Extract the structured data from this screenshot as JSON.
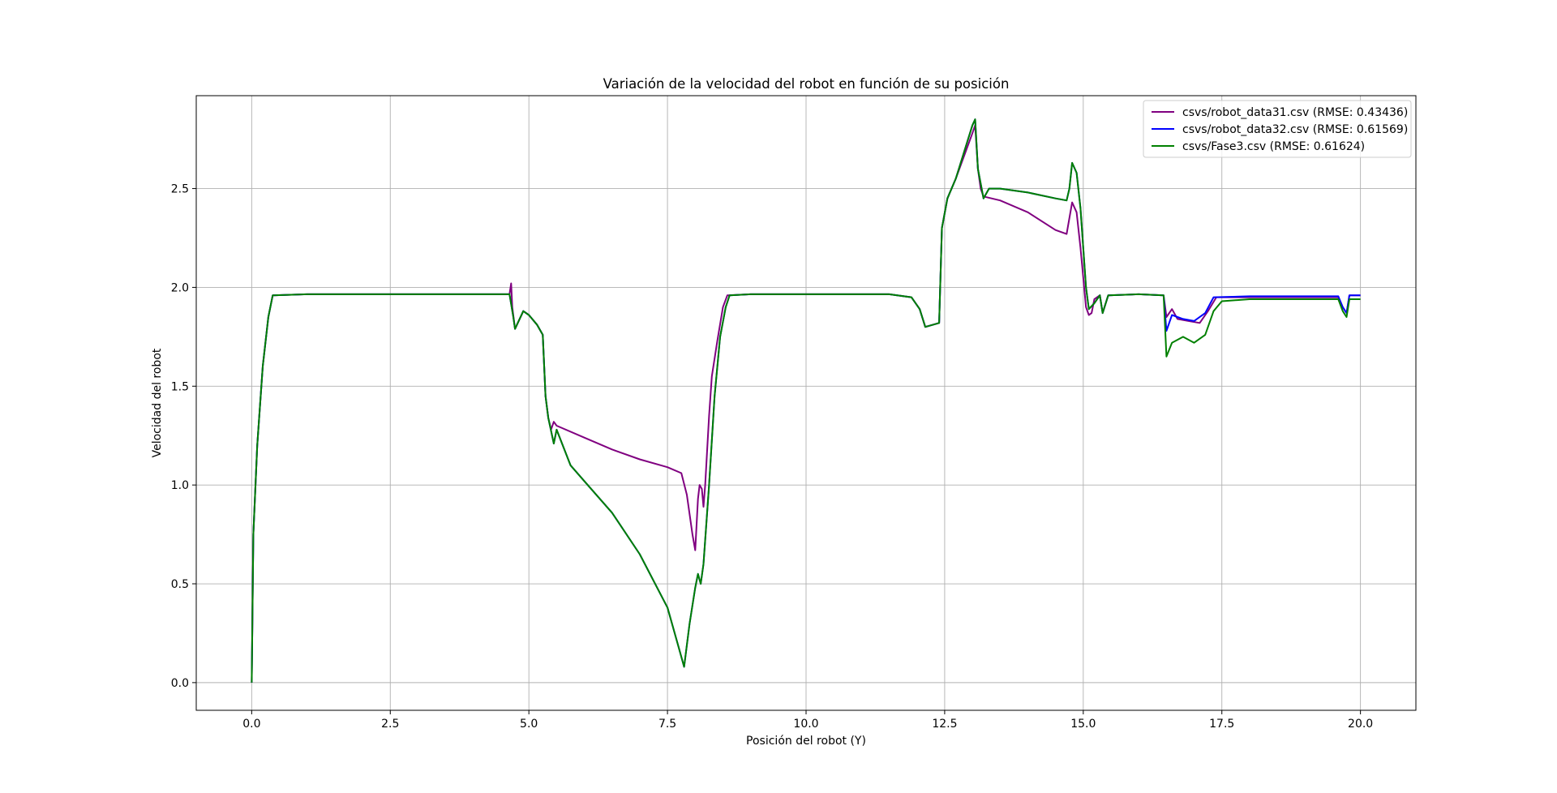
{
  "chart_data": {
    "type": "line",
    "title": "Variación de la velocidad del robot en función de su posición",
    "xlabel": "Posición del robot (Y)",
    "ylabel": "Velocidad del robot",
    "xlim": [
      -1.0,
      21.0
    ],
    "ylim": [
      -0.14,
      2.97
    ],
    "xticks": [
      0.0,
      2.5,
      5.0,
      7.5,
      10.0,
      12.5,
      15.0,
      17.5,
      20.0
    ],
    "xtick_labels": [
      "0.0",
      "2.5",
      "5.0",
      "7.5",
      "10.0",
      "12.5",
      "15.0",
      "17.5",
      "20.0"
    ],
    "yticks": [
      0.0,
      0.5,
      1.0,
      1.5,
      2.0,
      2.5
    ],
    "ytick_labels": [
      "0.0",
      "0.5",
      "1.0",
      "1.5",
      "2.0",
      "2.5"
    ],
    "grid": true,
    "legend_position": "upper-right",
    "series": [
      {
        "name": "csvs/robot_data31.csv (RMSE: 0.43436)",
        "color": "#800080",
        "points": [
          [
            0.0,
            0.0
          ],
          [
            0.03,
            0.75
          ],
          [
            0.1,
            1.2
          ],
          [
            0.2,
            1.6
          ],
          [
            0.3,
            1.85
          ],
          [
            0.38,
            1.96
          ],
          [
            1.0,
            1.965
          ],
          [
            2.5,
            1.965
          ],
          [
            4.0,
            1.965
          ],
          [
            4.65,
            1.965
          ],
          [
            4.68,
            2.02
          ],
          [
            4.7,
            1.9
          ],
          [
            4.75,
            1.79
          ],
          [
            4.8,
            1.82
          ],
          [
            4.9,
            1.88
          ],
          [
            5.0,
            1.86
          ],
          [
            5.15,
            1.81
          ],
          [
            5.25,
            1.76
          ],
          [
            5.3,
            1.45
          ],
          [
            5.35,
            1.34
          ],
          [
            5.4,
            1.28
          ],
          [
            5.45,
            1.32
          ],
          [
            5.5,
            1.3
          ],
          [
            6.0,
            1.24
          ],
          [
            6.5,
            1.18
          ],
          [
            7.0,
            1.13
          ],
          [
            7.5,
            1.09
          ],
          [
            7.75,
            1.06
          ],
          [
            7.85,
            0.95
          ],
          [
            7.95,
            0.75
          ],
          [
            8.0,
            0.67
          ],
          [
            8.05,
            0.93
          ],
          [
            8.08,
            1.0
          ],
          [
            8.12,
            0.98
          ],
          [
            8.15,
            0.89
          ],
          [
            8.18,
            1.0
          ],
          [
            8.25,
            1.35
          ],
          [
            8.3,
            1.55
          ],
          [
            8.4,
            1.73
          ],
          [
            8.5,
            1.9
          ],
          [
            8.58,
            1.96
          ],
          [
            9.0,
            1.965
          ],
          [
            10.0,
            1.965
          ],
          [
            11.5,
            1.965
          ],
          [
            11.9,
            1.95
          ],
          [
            12.05,
            1.89
          ],
          [
            12.15,
            1.8
          ],
          [
            12.4,
            1.82
          ],
          [
            12.45,
            2.3
          ],
          [
            12.55,
            2.45
          ],
          [
            12.7,
            2.55
          ],
          [
            13.0,
            2.78
          ],
          [
            13.05,
            2.82
          ],
          [
            13.1,
            2.6
          ],
          [
            13.15,
            2.5
          ],
          [
            13.2,
            2.46
          ],
          [
            13.5,
            2.44
          ],
          [
            14.0,
            2.38
          ],
          [
            14.5,
            2.29
          ],
          [
            14.7,
            2.27
          ],
          [
            14.75,
            2.35
          ],
          [
            14.8,
            2.43
          ],
          [
            14.88,
            2.38
          ],
          [
            14.95,
            2.2
          ],
          [
            15.05,
            1.9
          ],
          [
            15.1,
            1.86
          ],
          [
            15.15,
            1.87
          ],
          [
            15.2,
            1.94
          ],
          [
            15.3,
            1.96
          ],
          [
            15.35,
            1.87
          ],
          [
            15.45,
            1.96
          ],
          [
            16.0,
            1.965
          ],
          [
            16.45,
            1.96
          ],
          [
            16.5,
            1.85
          ],
          [
            16.6,
            1.89
          ],
          [
            16.7,
            1.84
          ],
          [
            16.9,
            1.83
          ],
          [
            17.1,
            1.82
          ],
          [
            17.25,
            1.88
          ],
          [
            17.4,
            1.95
          ],
          [
            18.0,
            1.95
          ],
          [
            19.0,
            1.95
          ],
          [
            19.6,
            1.95
          ],
          [
            19.68,
            1.9
          ],
          [
            19.75,
            1.87
          ],
          [
            19.8,
            1.96
          ],
          [
            20.0,
            1.96
          ]
        ]
      },
      {
        "name": "csvs/robot_data32.csv (RMSE: 0.61569)",
        "color": "#0000ff",
        "points": [
          [
            0.0,
            0.0
          ],
          [
            0.03,
            0.75
          ],
          [
            0.1,
            1.2
          ],
          [
            0.2,
            1.6
          ],
          [
            0.3,
            1.85
          ],
          [
            0.38,
            1.96
          ],
          [
            1.0,
            1.965
          ],
          [
            2.5,
            1.965
          ],
          [
            4.0,
            1.965
          ],
          [
            4.65,
            1.965
          ],
          [
            4.72,
            1.85
          ],
          [
            4.75,
            1.79
          ],
          [
            4.8,
            1.82
          ],
          [
            4.9,
            1.88
          ],
          [
            5.0,
            1.86
          ],
          [
            5.15,
            1.81
          ],
          [
            5.25,
            1.76
          ],
          [
            5.3,
            1.45
          ],
          [
            5.35,
            1.34
          ],
          [
            5.45,
            1.21
          ],
          [
            5.5,
            1.28
          ],
          [
            5.75,
            1.1
          ],
          [
            6.0,
            1.02
          ],
          [
            6.5,
            0.86
          ],
          [
            7.0,
            0.65
          ],
          [
            7.5,
            0.38
          ],
          [
            7.7,
            0.18
          ],
          [
            7.8,
            0.08
          ],
          [
            7.9,
            0.3
          ],
          [
            8.0,
            0.48
          ],
          [
            8.05,
            0.55
          ],
          [
            8.1,
            0.5
          ],
          [
            8.15,
            0.6
          ],
          [
            8.25,
            1.0
          ],
          [
            8.35,
            1.45
          ],
          [
            8.45,
            1.75
          ],
          [
            8.55,
            1.9
          ],
          [
            8.62,
            1.96
          ],
          [
            9.0,
            1.965
          ],
          [
            10.0,
            1.965
          ],
          [
            11.5,
            1.965
          ],
          [
            11.9,
            1.95
          ],
          [
            12.05,
            1.89
          ],
          [
            12.15,
            1.8
          ],
          [
            12.4,
            1.82
          ],
          [
            12.45,
            2.3
          ],
          [
            12.55,
            2.45
          ],
          [
            12.7,
            2.55
          ],
          [
            13.0,
            2.82
          ],
          [
            13.05,
            2.85
          ],
          [
            13.1,
            2.6
          ],
          [
            13.2,
            2.45
          ],
          [
            13.3,
            2.5
          ],
          [
            13.5,
            2.5
          ],
          [
            14.0,
            2.48
          ],
          [
            14.5,
            2.45
          ],
          [
            14.7,
            2.44
          ],
          [
            14.75,
            2.5
          ],
          [
            14.8,
            2.63
          ],
          [
            14.88,
            2.58
          ],
          [
            14.95,
            2.4
          ],
          [
            15.05,
            2.0
          ],
          [
            15.1,
            1.89
          ],
          [
            15.2,
            1.92
          ],
          [
            15.3,
            1.96
          ],
          [
            15.35,
            1.87
          ],
          [
            15.45,
            1.96
          ],
          [
            16.0,
            1.965
          ],
          [
            16.45,
            1.96
          ],
          [
            16.5,
            1.78
          ],
          [
            16.6,
            1.86
          ],
          [
            16.8,
            1.84
          ],
          [
            17.0,
            1.83
          ],
          [
            17.2,
            1.87
          ],
          [
            17.35,
            1.95
          ],
          [
            18.0,
            1.955
          ],
          [
            19.0,
            1.955
          ],
          [
            19.6,
            1.955
          ],
          [
            19.68,
            1.9
          ],
          [
            19.75,
            1.87
          ],
          [
            19.8,
            1.96
          ],
          [
            20.0,
            1.96
          ]
        ]
      },
      {
        "name": "csvs/Fase3.csv (RMSE: 0.61624)",
        "color": "#008000",
        "points": [
          [
            0.0,
            0.0
          ],
          [
            0.03,
            0.75
          ],
          [
            0.1,
            1.2
          ],
          [
            0.2,
            1.6
          ],
          [
            0.3,
            1.85
          ],
          [
            0.38,
            1.96
          ],
          [
            1.0,
            1.965
          ],
          [
            2.5,
            1.965
          ],
          [
            4.0,
            1.965
          ],
          [
            4.65,
            1.965
          ],
          [
            4.72,
            1.85
          ],
          [
            4.75,
            1.79
          ],
          [
            4.8,
            1.82
          ],
          [
            4.9,
            1.88
          ],
          [
            5.0,
            1.86
          ],
          [
            5.15,
            1.81
          ],
          [
            5.25,
            1.76
          ],
          [
            5.3,
            1.45
          ],
          [
            5.35,
            1.34
          ],
          [
            5.45,
            1.21
          ],
          [
            5.5,
            1.28
          ],
          [
            5.75,
            1.1
          ],
          [
            6.0,
            1.02
          ],
          [
            6.5,
            0.86
          ],
          [
            7.0,
            0.65
          ],
          [
            7.5,
            0.38
          ],
          [
            7.7,
            0.18
          ],
          [
            7.8,
            0.08
          ],
          [
            7.9,
            0.3
          ],
          [
            8.0,
            0.48
          ],
          [
            8.05,
            0.55
          ],
          [
            8.1,
            0.5
          ],
          [
            8.15,
            0.6
          ],
          [
            8.25,
            1.0
          ],
          [
            8.35,
            1.45
          ],
          [
            8.45,
            1.75
          ],
          [
            8.55,
            1.9
          ],
          [
            8.62,
            1.96
          ],
          [
            9.0,
            1.965
          ],
          [
            10.0,
            1.965
          ],
          [
            11.5,
            1.965
          ],
          [
            11.9,
            1.95
          ],
          [
            12.05,
            1.89
          ],
          [
            12.15,
            1.8
          ],
          [
            12.4,
            1.82
          ],
          [
            12.45,
            2.3
          ],
          [
            12.55,
            2.45
          ],
          [
            12.7,
            2.55
          ],
          [
            13.0,
            2.82
          ],
          [
            13.05,
            2.85
          ],
          [
            13.1,
            2.6
          ],
          [
            13.2,
            2.45
          ],
          [
            13.3,
            2.5
          ],
          [
            13.5,
            2.5
          ],
          [
            14.0,
            2.48
          ],
          [
            14.5,
            2.45
          ],
          [
            14.7,
            2.44
          ],
          [
            14.75,
            2.5
          ],
          [
            14.8,
            2.63
          ],
          [
            14.88,
            2.58
          ],
          [
            14.95,
            2.4
          ],
          [
            15.05,
            2.0
          ],
          [
            15.1,
            1.89
          ],
          [
            15.2,
            1.92
          ],
          [
            15.3,
            1.96
          ],
          [
            15.35,
            1.87
          ],
          [
            15.45,
            1.96
          ],
          [
            16.0,
            1.965
          ],
          [
            16.45,
            1.96
          ],
          [
            16.5,
            1.65
          ],
          [
            16.6,
            1.72
          ],
          [
            16.8,
            1.75
          ],
          [
            17.0,
            1.72
          ],
          [
            17.2,
            1.76
          ],
          [
            17.35,
            1.88
          ],
          [
            17.5,
            1.93
          ],
          [
            18.0,
            1.94
          ],
          [
            19.0,
            1.94
          ],
          [
            19.6,
            1.94
          ],
          [
            19.68,
            1.88
          ],
          [
            19.75,
            1.85
          ],
          [
            19.8,
            1.94
          ],
          [
            20.0,
            1.94
          ]
        ]
      }
    ]
  }
}
